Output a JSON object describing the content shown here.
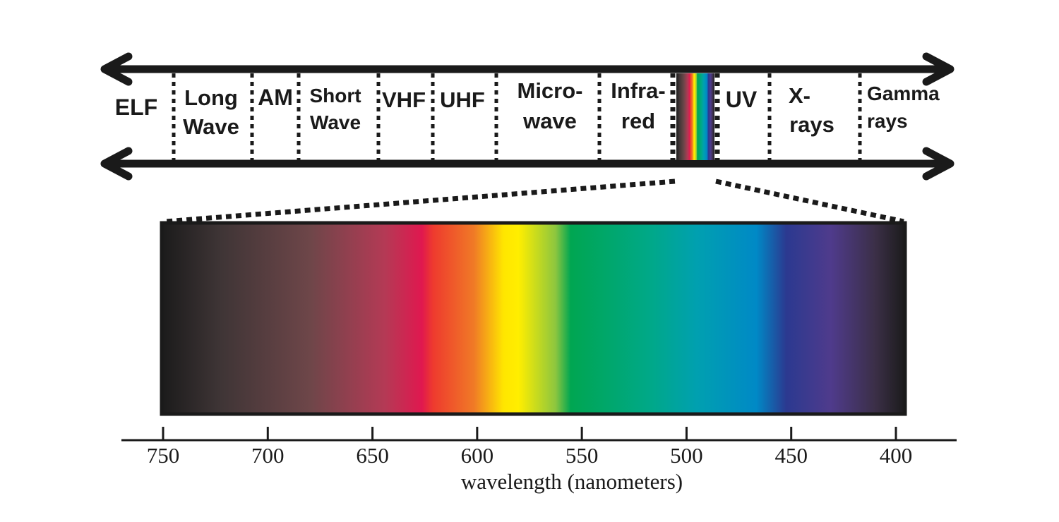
{
  "colors": {
    "ink": "#1a1a1a",
    "spectrum_stops": [
      "#1b1b1b",
      "#3f3536",
      "#6e4649",
      "#b43a55",
      "#e0184f",
      "#ee3a2e",
      "#f07a26",
      "#ffe600",
      "#ffee00",
      "#8cc63f",
      "#00a651",
      "#00a88a",
      "#00a0b0",
      "#0089c6",
      "#2b3990",
      "#4f3b8c",
      "#3b2f47",
      "#1b1b1b"
    ]
  },
  "em_spectrum": {
    "bands": [
      {
        "id": "elf",
        "lines": [
          "ELF"
        ]
      },
      {
        "id": "long-wave",
        "lines": [
          "Long",
          "Wave"
        ]
      },
      {
        "id": "am",
        "lines": [
          "AM"
        ]
      },
      {
        "id": "short-wave",
        "lines": [
          "Short",
          "Wave"
        ]
      },
      {
        "id": "vhf",
        "lines": [
          "VHF"
        ]
      },
      {
        "id": "uhf",
        "lines": [
          "UHF"
        ]
      },
      {
        "id": "microwave",
        "lines": [
          "Micro-",
          "wave"
        ]
      },
      {
        "id": "infrared",
        "lines": [
          "Infra-",
          "red"
        ]
      },
      {
        "id": "uv",
        "lines": [
          "UV"
        ]
      },
      {
        "id": "x-rays",
        "lines": [
          "X-",
          "rays"
        ]
      },
      {
        "id": "gamma-rays",
        "lines": [
          "Gamma",
          "rays"
        ]
      }
    ]
  },
  "visible_axis": {
    "ticks": [
      "750",
      "700",
      "650",
      "600",
      "550",
      "500",
      "450",
      "400"
    ],
    "xlabel": "wavelength (nanometers)",
    "range": [
      750,
      400
    ]
  }
}
